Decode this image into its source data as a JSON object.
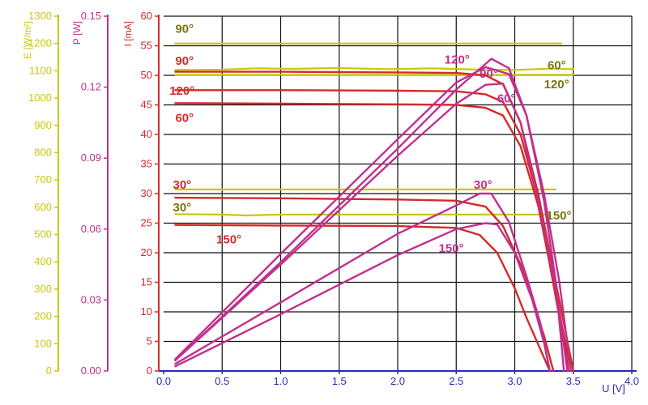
{
  "colors": {
    "E": "#c8c80a",
    "P": "#c0308e",
    "I": "#d42a2a",
    "annot_E": "#7a7410",
    "grid": "#111111",
    "axis_bottom": "#2a2ab8"
  },
  "chart_data": {
    "type": "line",
    "title": "",
    "xlabel": "U [V]",
    "xlim": [
      0,
      4.0
    ],
    "xticks": [
      "0.0",
      "0.5",
      "1.0",
      "1.5",
      "2.0",
      "2.5",
      "3.0",
      "3.5",
      "4.0"
    ],
    "grid": true,
    "y_axes": [
      {
        "id": "E",
        "label": "E [W/m²]",
        "lim": [
          0,
          1300
        ],
        "ticks": [
          "0",
          "100",
          "200",
          "300",
          "400",
          "500",
          "600",
          "700",
          "800",
          "900",
          "1000",
          "1100",
          "1200",
          "1300"
        ]
      },
      {
        "id": "P",
        "label": "P [W]",
        "lim": [
          0,
          0.15
        ],
        "ticks": [
          "0.00",
          "0.03",
          "0.06",
          "0.09",
          "0.12",
          "0.15"
        ]
      },
      {
        "id": "I",
        "label": "I [mA]",
        "lim": [
          0,
          60
        ],
        "ticks": [
          "0",
          "5",
          "10",
          "15",
          "20",
          "25",
          "30",
          "35",
          "40",
          "45",
          "50",
          "55",
          "60"
        ]
      }
    ],
    "series": [
      {
        "name": "90°",
        "axis": "E",
        "x": [
          0.1,
          1.0,
          2.0,
          3.0,
          3.4
        ],
        "y": [
          1200,
          1200,
          1200,
          1200,
          1200
        ]
      },
      {
        "name": "60°",
        "axis": "E",
        "x": [
          0.1,
          0.5,
          0.8,
          1.1,
          1.5,
          1.9,
          2.3,
          2.7,
          3.0,
          3.3,
          3.5
        ],
        "y": [
          1103,
          1104,
          1109,
          1107,
          1110,
          1106,
          1109,
          1104,
          1103,
          1108,
          1106
        ]
      },
      {
        "name": "120°",
        "axis": "E",
        "x": [
          0.1,
          1.0,
          2.0,
          3.0,
          3.5
        ],
        "y": [
          1085,
          1085,
          1085,
          1085,
          1085
        ]
      },
      {
        "name": "30°",
        "axis": "E",
        "x": [
          0.1,
          1.0,
          2.0,
          3.0,
          3.35
        ],
        "y": [
          665,
          665,
          665,
          665,
          665
        ]
      },
      {
        "name": "150°",
        "axis": "E",
        "x": [
          0.1,
          0.5,
          0.7,
          1.0,
          1.5,
          2.0,
          2.5,
          3.0,
          3.3
        ],
        "y": [
          575,
          573,
          570,
          573,
          573,
          573,
          573,
          573,
          573
        ]
      },
      {
        "name": "90°",
        "axis": "I",
        "x": [
          0.1,
          1.0,
          2.0,
          2.5,
          2.75,
          2.9,
          3.05,
          3.2,
          3.3,
          3.42,
          3.5
        ],
        "y": [
          50.6,
          50.6,
          50.5,
          50.4,
          50.0,
          48.5,
          42.0,
          30.0,
          20.0,
          8.0,
          0
        ]
      },
      {
        "name": "120°",
        "axis": "I",
        "x": [
          0.1,
          1.0,
          2.0,
          2.5,
          2.75,
          2.9,
          3.05,
          3.2,
          3.3,
          3.4,
          3.48
        ],
        "y": [
          47.5,
          47.5,
          47.4,
          47.3,
          46.8,
          45.5,
          40.0,
          29.0,
          19.0,
          8.0,
          0
        ]
      },
      {
        "name": "60°",
        "axis": "I",
        "x": [
          0.1,
          1.0,
          2.0,
          2.5,
          2.75,
          2.9,
          3.05,
          3.2,
          3.3,
          3.4,
          3.46
        ],
        "y": [
          45.3,
          45.2,
          45.1,
          45.0,
          44.5,
          43.2,
          38.0,
          28.0,
          18.0,
          7.0,
          0
        ]
      },
      {
        "name": "30°",
        "axis": "I",
        "x": [
          0.1,
          1.0,
          2.0,
          2.5,
          2.75,
          2.9,
          3.05,
          3.15,
          3.25,
          3.33
        ],
        "y": [
          29.3,
          29.2,
          29.0,
          28.8,
          27.8,
          24.5,
          18.0,
          12.0,
          6.0,
          0
        ]
      },
      {
        "name": "150°",
        "axis": "I",
        "x": [
          0.1,
          1.0,
          2.0,
          2.5,
          2.7,
          2.85,
          3.0,
          3.1,
          3.2,
          3.3
        ],
        "y": [
          24.7,
          24.6,
          24.5,
          24.2,
          23.0,
          20.0,
          14.0,
          9.0,
          4.5,
          0
        ]
      },
      {
        "name": "120°",
        "axis": "P",
        "x": [
          0.1,
          1.0,
          2.0,
          2.5,
          2.8,
          2.95,
          3.1,
          3.25,
          3.35,
          3.42
        ],
        "y": [
          0.0045,
          0.046,
          0.094,
          0.119,
          0.132,
          0.128,
          0.108,
          0.072,
          0.038,
          0
        ]
      },
      {
        "name": "90°",
        "axis": "P",
        "x": [
          0.1,
          1.0,
          2.0,
          2.5,
          2.75,
          2.95,
          3.1,
          3.25,
          3.38,
          3.48
        ],
        "y": [
          0.005,
          0.0495,
          0.098,
          0.122,
          0.1285,
          0.1255,
          0.108,
          0.075,
          0.038,
          0
        ]
      },
      {
        "name": "60°",
        "axis": "P",
        "x": [
          0.1,
          1.0,
          2.0,
          2.5,
          2.75,
          2.9,
          3.05,
          3.2,
          3.35,
          3.45
        ],
        "y": [
          0.0045,
          0.045,
          0.091,
          0.113,
          0.121,
          0.1215,
          0.105,
          0.072,
          0.035,
          0
        ]
      },
      {
        "name": "30°",
        "axis": "P",
        "x": [
          0.1,
          1.0,
          2.0,
          2.5,
          2.7,
          2.8,
          2.95,
          3.1,
          3.22,
          3.3
        ],
        "y": [
          0.003,
          0.029,
          0.058,
          0.07,
          0.075,
          0.075,
          0.063,
          0.04,
          0.02,
          0
        ]
      },
      {
        "name": "150°",
        "axis": "P",
        "x": [
          0.1,
          1.0,
          2.0,
          2.5,
          2.75,
          2.85,
          3.0,
          3.15,
          3.25,
          3.3
        ],
        "y": [
          0.002,
          0.024,
          0.049,
          0.06,
          0.0625,
          0.062,
          0.05,
          0.03,
          0.012,
          0
        ]
      }
    ],
    "annotations": [
      {
        "text": "90°",
        "color": "annot_E",
        "axis": "I",
        "x": 0.1,
        "y": 57.2,
        "anchor": "start"
      },
      {
        "text": "60°",
        "color": "annot_E",
        "axis": "I",
        "x": 3.28,
        "y": 51.0,
        "anchor": "start"
      },
      {
        "text": "120°",
        "color": "annot_E",
        "axis": "I",
        "x": 3.25,
        "y": 47.8,
        "anchor": "start"
      },
      {
        "text": "30°",
        "color": "annot_E",
        "axis": "I",
        "x": 0.08,
        "y": 27.0,
        "anchor": "start"
      },
      {
        "text": "150°",
        "color": "annot_E",
        "axis": "I",
        "x": 3.27,
        "y": 25.6,
        "anchor": "start"
      },
      {
        "text": "90°",
        "color": "I",
        "axis": "I",
        "x": 0.1,
        "y": 51.8,
        "anchor": "start"
      },
      {
        "text": "120°",
        "color": "I",
        "axis": "I",
        "x": 0.05,
        "y": 46.7,
        "anchor": "start"
      },
      {
        "text": "60°",
        "color": "I",
        "axis": "I",
        "x": 0.1,
        "y": 42.1,
        "anchor": "start"
      },
      {
        "text": "30°",
        "color": "I",
        "axis": "I",
        "x": 0.08,
        "y": 30.8,
        "anchor": "start"
      },
      {
        "text": "150°",
        "color": "I",
        "axis": "I",
        "x": 0.45,
        "y": 21.6,
        "anchor": "start"
      },
      {
        "text": "120°",
        "color": "P",
        "axis": "I",
        "x": 2.4,
        "y": 52.0,
        "anchor": "start"
      },
      {
        "text": "90°",
        "color": "P",
        "axis": "I",
        "x": 2.7,
        "y": 49.6,
        "anchor": "start"
      },
      {
        "text": "60°",
        "color": "P",
        "axis": "I",
        "x": 2.85,
        "y": 45.4,
        "anchor": "start"
      },
      {
        "text": "30°",
        "color": "P",
        "axis": "I",
        "x": 2.65,
        "y": 30.8,
        "anchor": "start"
      },
      {
        "text": "150°",
        "color": "P",
        "axis": "I",
        "x": 2.35,
        "y": 20.1,
        "anchor": "start"
      }
    ]
  }
}
